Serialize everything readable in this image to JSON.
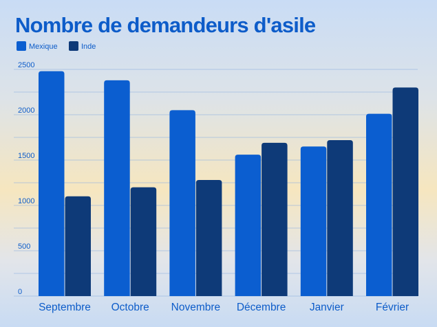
{
  "chart_data": {
    "type": "bar",
    "title": "Nombre de demandeurs d'asile",
    "categories": [
      "Septembre",
      "Octobre",
      "Novembre",
      "Décembre",
      "Janvier",
      "Février"
    ],
    "series": [
      {
        "name": "Mexique",
        "color": "#0b5ed0",
        "values": [
          2480,
          2380,
          2050,
          1560,
          1650,
          2010
        ]
      },
      {
        "name": "Inde",
        "color": "#0e3a78",
        "values": [
          1100,
          1200,
          1280,
          1690,
          1720,
          2300
        ]
      }
    ],
    "yticks": [
      "0",
      "500",
      "1000",
      "1500",
      "2000",
      "2500"
    ],
    "ylim": [
      0,
      2500
    ],
    "grid": true,
    "legend": "top-left"
  }
}
